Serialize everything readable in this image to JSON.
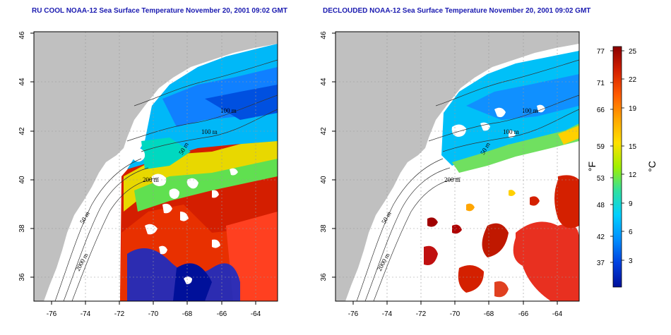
{
  "panels": [
    {
      "id": "left",
      "title": "RU COOL NOAA-12 Sea Surface Temperature November 20, 2001 09:02 GMT",
      "contours": [
        "100 m",
        "100 m",
        "50 m",
        "200 m",
        "50 m",
        "2000 m"
      ]
    },
    {
      "id": "right",
      "title": "DECLOUDED NOAA-12 Sea Surface Temperature November 20, 2001 09:02 GMT",
      "contours": [
        "100 m",
        "100 m",
        "50 m",
        "200 m",
        "50 m",
        "2000 m"
      ]
    }
  ],
  "axes": {
    "lon_ticks": [
      "-76",
      "-74",
      "-72",
      "-70",
      "-68",
      "-66",
      "-64"
    ],
    "lat_ticks": [
      "36",
      "38",
      "40",
      "42",
      "44",
      "46"
    ]
  },
  "colorbar": {
    "fahrenheit_ticks": [
      "77",
      "71",
      "66",
      "59",
      "53",
      "48",
      "42",
      "37"
    ],
    "celsius_ticks": [
      "25",
      "22",
      "19",
      "15",
      "12",
      "9",
      "6",
      "3"
    ],
    "unit_f": "°F",
    "unit_c": "°C",
    "colors": [
      "#8b0000",
      "#d42000",
      "#ff5a00",
      "#ffa500",
      "#ffe000",
      "#a0f000",
      "#30e0a0",
      "#00d0ff",
      "#0090ff",
      "#0040e0",
      "#00109a"
    ]
  },
  "colors": {
    "land": "#c0c0c0",
    "ocean_blank": "#ffffff",
    "title": "#1a1ab0"
  }
}
